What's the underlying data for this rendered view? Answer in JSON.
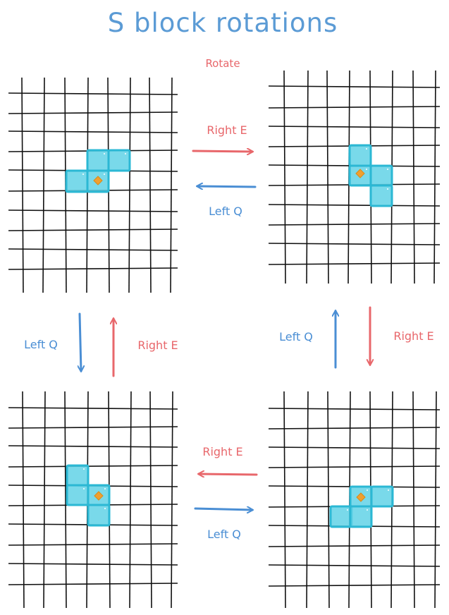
{
  "title": "S block rotations",
  "rotate_label": "Rotate",
  "labels": {
    "top_right": "Right E",
    "top_left": "Left Q",
    "left_left": "Left Q",
    "left_right": "Right E",
    "right_left": "Left Q",
    "right_right": "Right E",
    "bottom_right": "Right E",
    "bottom_left": "Left Q"
  },
  "colors": {
    "title": "#5b9bd5",
    "right": "#e8676b",
    "left": "#4a8ed4",
    "block_fill": "#62d2e6",
    "block_stroke": "#2bb8d4",
    "pivot": "#f0a030",
    "grid": "#111111"
  }
}
